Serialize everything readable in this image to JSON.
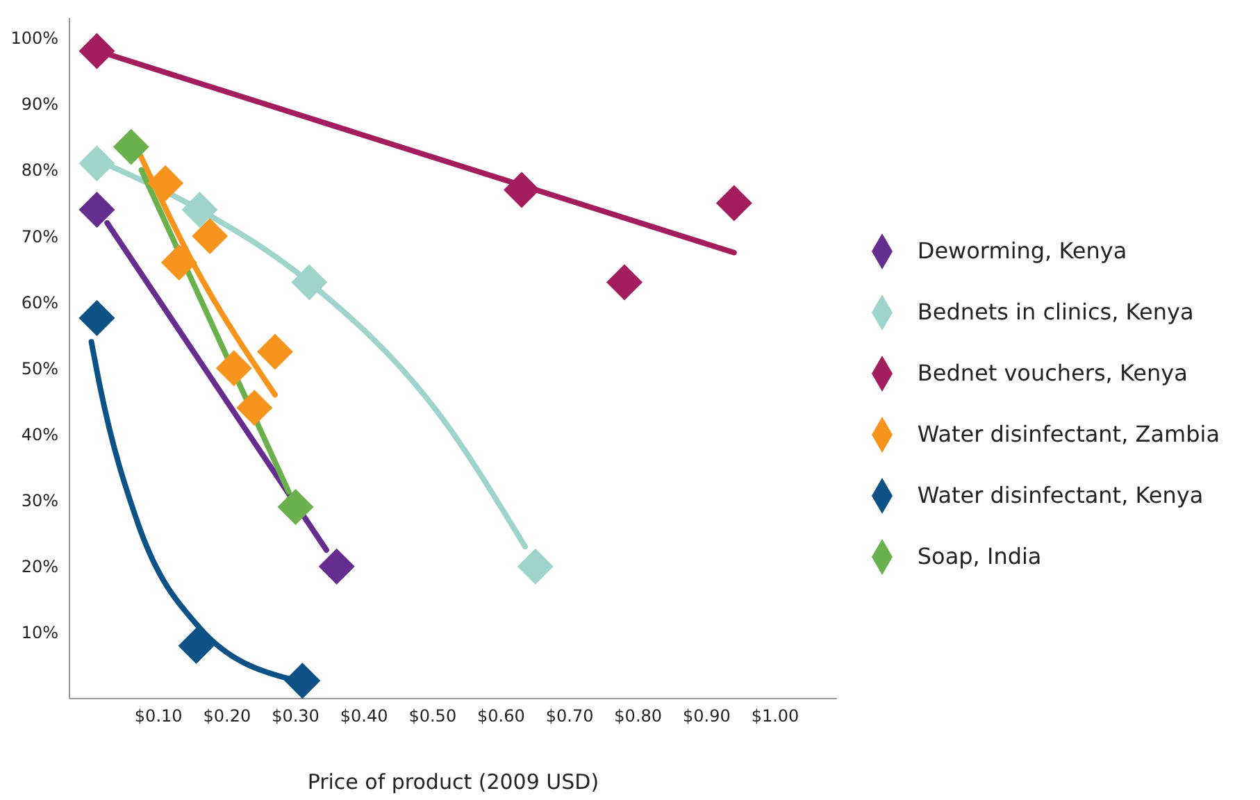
{
  "chart_data": {
    "type": "scatter",
    "xlabel": "Price of product (2009 USD)",
    "xlim": [
      -0.03,
      1.09
    ],
    "ylim": [
      0,
      103
    ],
    "xticks": [
      {
        "value": 0.1,
        "label": "$0.10"
      },
      {
        "value": 0.2,
        "label": "$0.20"
      },
      {
        "value": 0.3,
        "label": "$0.30"
      },
      {
        "value": 0.4,
        "label": "$0.40"
      },
      {
        "value": 0.5,
        "label": "$0.50"
      },
      {
        "value": 0.6,
        "label": "$0.60"
      },
      {
        "value": 0.7,
        "label": "$0.70"
      },
      {
        "value": 0.8,
        "label": "$0.80"
      },
      {
        "value": 0.9,
        "label": "$0.90"
      },
      {
        "value": 1.0,
        "label": "$1.00"
      }
    ],
    "yticks": [
      {
        "value": 10,
        "label": "10%"
      },
      {
        "value": 20,
        "label": "20%"
      },
      {
        "value": 30,
        "label": "30%"
      },
      {
        "value": 40,
        "label": "40%"
      },
      {
        "value": 50,
        "label": "50%"
      },
      {
        "value": 60,
        "label": "60%"
      },
      {
        "value": 70,
        "label": "70%"
      },
      {
        "value": 80,
        "label": "80%"
      },
      {
        "value": 90,
        "label": "90%"
      },
      {
        "value": 100,
        "label": "100%"
      }
    ],
    "grid": false,
    "legend": "right",
    "marker": "diamond",
    "series": [
      {
        "type": "line",
        "marker": "none",
        "color": "#a21c5e",
        "x": [
          0.03,
          0.94
        ],
        "values": [
          97.4,
          67.5
        ]
      },
      {
        "type": "line",
        "marker": "none",
        "color": "#9fd4cd",
        "x": [
          0.03,
          0.16,
          0.32,
          0.51,
          0.635
        ],
        "values": [
          80.6,
          74,
          63,
          43,
          23
        ]
      },
      {
        "type": "line",
        "marker": "none",
        "color": "#662d91",
        "x": [
          0.025,
          0.345
        ],
        "values": [
          72,
          22.5
        ]
      },
      {
        "type": "line",
        "marker": "none",
        "color": "#f7941d",
        "x": [
          0.07,
          0.15,
          0.27
        ],
        "values": [
          83,
          66,
          46
        ]
      },
      {
        "type": "line",
        "marker": "none",
        "color": "#6ab04c",
        "x": [
          0.075,
          0.29
        ],
        "values": [
          80,
          31.3
        ]
      },
      {
        "type": "line",
        "marker": "none",
        "color": "#0c5287",
        "x": [
          0.002,
          0.015,
          0.07,
          0.16,
          0.29
        ],
        "values": [
          54,
          47,
          26.5,
          10.7,
          3
        ]
      },
      {
        "name": "Deworming, Kenya",
        "color": "#662d91",
        "x": [
          0.01,
          0.36
        ],
        "values": [
          74,
          20
        ]
      },
      {
        "name": "Bednets in clinics, Kenya",
        "color": "#9fd4cd",
        "x": [
          0.01,
          0.16,
          0.32,
          0.65
        ],
        "values": [
          81,
          74,
          63,
          20
        ]
      },
      {
        "name": "Bednet vouchers, Kenya",
        "color": "#a21c5e",
        "x": [
          0.01,
          0.63,
          0.78,
          0.94
        ],
        "values": [
          98,
          77,
          63,
          75
        ]
      },
      {
        "name": "Water disinfectant, Zambia",
        "color": "#f7941d",
        "x": [
          0.11,
          0.13,
          0.175,
          0.21,
          0.24,
          0.27
        ],
        "values": [
          78,
          66,
          70,
          50,
          44,
          52.5
        ]
      },
      {
        "name": "Water disinfectant, Kenya",
        "color": "#0c5287",
        "x": [
          0.01,
          0.155,
          0.31
        ],
        "values": [
          57.6,
          8,
          2.7
        ]
      },
      {
        "name": "Soap, India",
        "color": "#6ab04c",
        "x": [
          0.06,
          0.3
        ],
        "values": [
          83.5,
          29
        ]
      }
    ]
  }
}
